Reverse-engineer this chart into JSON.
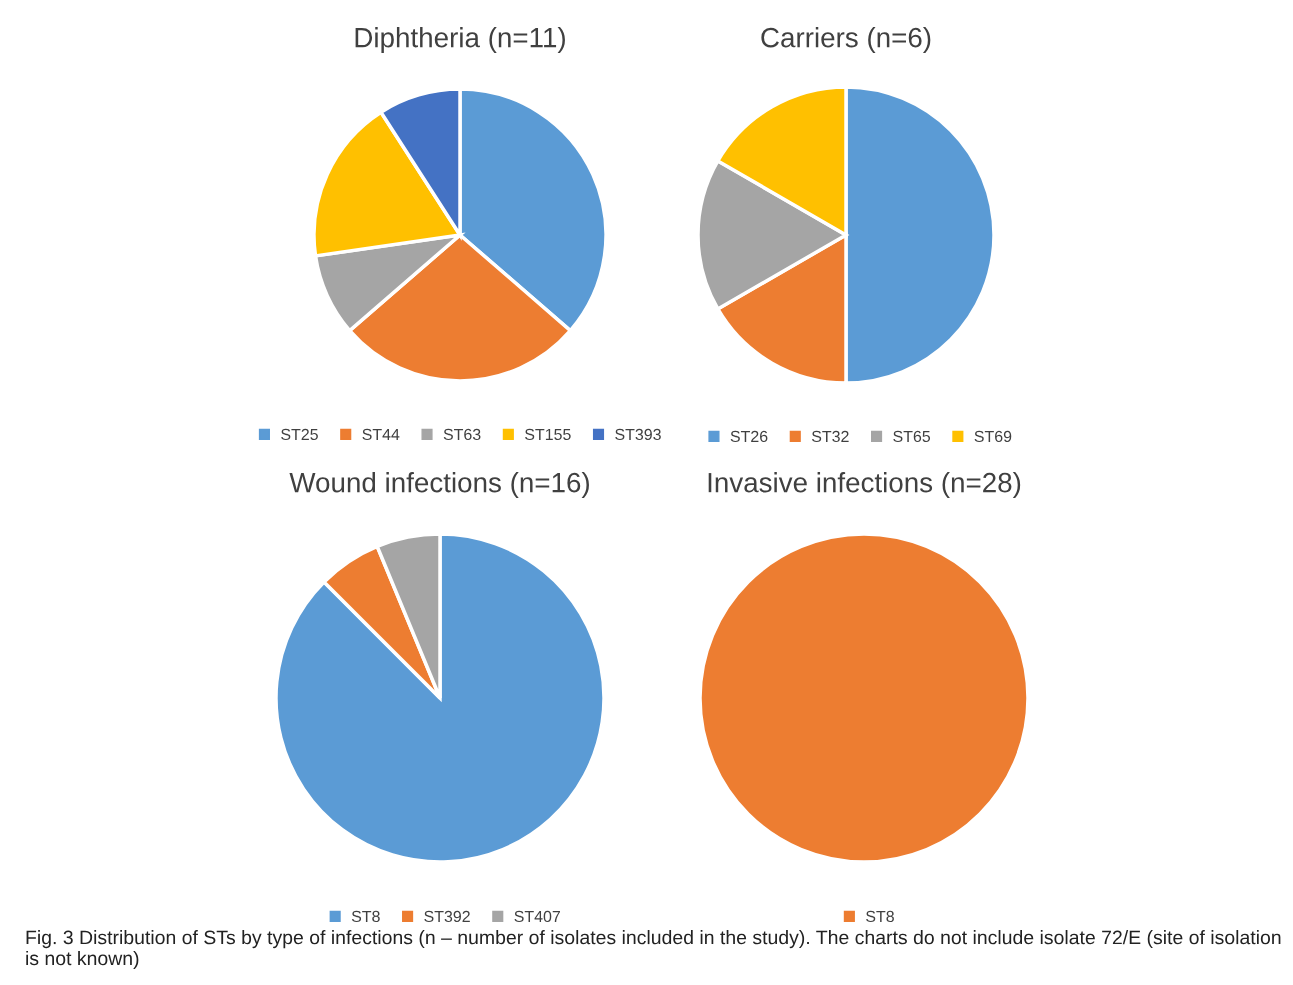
{
  "chart_data": [
    {
      "type": "pie",
      "title": "Diphtheria (n=11)",
      "categories": [
        "ST25",
        "ST44",
        "ST63",
        "ST155",
        "ST393"
      ],
      "values": [
        36.36,
        27.27,
        9.09,
        18.18,
        9.1
      ],
      "colors": [
        "#5b9bd5",
        "#ed7d31",
        "#a5a5a5",
        "#ffc000",
        "#4472c4"
      ],
      "legend": "bottom"
    },
    {
      "type": "pie",
      "title": "Carriers (n=6)",
      "categories": [
        "ST26",
        "ST32",
        "ST65",
        "ST69"
      ],
      "values": [
        50,
        16.67,
        16.67,
        16.66
      ],
      "colors": [
        "#5b9bd5",
        "#ed7d31",
        "#a5a5a5",
        "#ffc000"
      ],
      "legend": "bottom"
    },
    {
      "type": "pie",
      "title": "Wound infections (n=16)",
      "categories": [
        "ST8",
        "ST392",
        "ST407"
      ],
      "values": [
        87.5,
        6.25,
        6.25
      ],
      "colors": [
        "#5b9bd5",
        "#ed7d31",
        "#a5a5a5"
      ],
      "legend": "bottom"
    },
    {
      "type": "pie",
      "title": "Invasive infections (n=28)",
      "categories": [
        "ST8"
      ],
      "values": [
        100
      ],
      "colors": [
        "#ed7d31"
      ],
      "legend": "bottom",
      "annotations": [
        "Fig. 3 Distribution of STs by type of infections (n – number of isolates included in the study). The charts do not include isolate 72/E (site of isolation is not known)"
      ]
    }
  ]
}
